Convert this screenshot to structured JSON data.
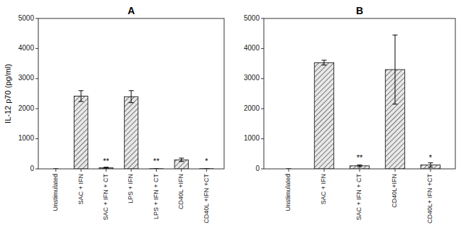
{
  "chart_data": [
    {
      "type": "bar",
      "title": "A",
      "categories": [
        "Unstimulated",
        "SAC + IFN",
        "SAC + IFN + CT",
        "LPS + IFN",
        "LPS + IFN + CT",
        "CD40L +IFN",
        "CD40L +IFN +CT"
      ],
      "values": [
        0,
        2420,
        35,
        2400,
        5,
        300,
        5
      ],
      "errors": [
        0,
        180,
        20,
        200,
        3,
        55,
        4
      ],
      "annotations": [
        {
          "text": "**",
          "x": 2,
          "y": 160
        },
        {
          "text": "**",
          "x": 4,
          "y": 160
        },
        {
          "text": "*",
          "x": 6,
          "y": 160
        }
      ],
      "ylabel": "IL-12 p70  (pg/ml)",
      "color": "#e8e8e8",
      "ylim": [
        0,
        5000
      ],
      "yticks": [
        0,
        1000,
        2000,
        3000,
        4000,
        5000
      ]
    },
    {
      "type": "bar",
      "title": "B",
      "categories": [
        "Unstimulated",
        "SAC + IFN",
        "SAC + IFN + CT",
        "CD40L+IFN",
        "CD40L+ IFN +CT"
      ],
      "values": [
        0,
        3530,
        100,
        3300,
        130
      ],
      "errors": [
        0,
        80,
        30,
        1150,
        70
      ],
      "annotations": [
        {
          "text": "**",
          "x": 2,
          "y": 280
        },
        {
          "text": "*",
          "x": 4,
          "y": 280
        }
      ],
      "color": "#e8e8e8",
      "ylim": [
        0,
        5000
      ],
      "yticks": [
        0,
        1000,
        2000,
        3000,
        4000,
        5000
      ]
    }
  ]
}
